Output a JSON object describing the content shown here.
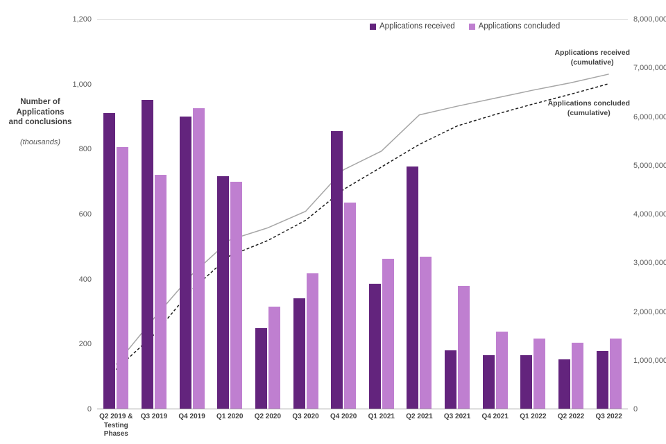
{
  "chart_data": {
    "type": "bar",
    "title": "",
    "y_axis_title": "Number of\nApplications\nand conclusions",
    "y_axis_title_note": "(thousands)",
    "categories": [
      "Q2 2019 &\nTesting\nPhases",
      "Q3 2019",
      "Q4 2019",
      "Q1 2020",
      "Q2 2020",
      "Q3 2020",
      "Q4 2020",
      "Q1 2021",
      "Q2 2021",
      "Q3 2021",
      "Q4 2021",
      "Q1 2022",
      "Q2 2022",
      "Q3 2022"
    ],
    "left_axis": {
      "max": 1200,
      "ticks": [
        "1,200",
        "1,000",
        "800",
        "600",
        "400",
        "200",
        "0"
      ]
    },
    "right_axis": {
      "max": 8000000,
      "ticks": [
        "8,000,000",
        "7,000,000",
        "6,000,000",
        "5,000,000",
        "4,000,000",
        "3,000,000",
        "2,000,000",
        "1,000,000",
        "0"
      ]
    },
    "series": [
      {
        "name": "Applications received",
        "type": "bar",
        "axis": "left",
        "color": "#63247d",
        "values": [
          910,
          950,
          900,
          715,
          248,
          340,
          855,
          385,
          745,
          180,
          165,
          165,
          152,
          178
        ]
      },
      {
        "name": "Applications concluded",
        "type": "bar",
        "axis": "left",
        "color": "#bf7fd0",
        "values": [
          805,
          720,
          925,
          698,
          313,
          417,
          635,
          462,
          467,
          378,
          237,
          215,
          203,
          215
        ]
      },
      {
        "name": "Applications received (cumulative)",
        "type": "line",
        "axis": "right",
        "color": "#a6a6a6",
        "dash": false,
        "values": [
          910000,
          1860000,
          2760000,
          3475000,
          3723000,
          4063000,
          4918000,
          5303000,
          6048000,
          6228000,
          6393000,
          6558000,
          6710000,
          6888000
        ]
      },
      {
        "name": "Applications concluded (cumulative)",
        "type": "line",
        "axis": "right",
        "color": "#1a1a1a",
        "dash": true,
        "values": [
          805000,
          1525000,
          2450000,
          3148000,
          3461000,
          3878000,
          4513000,
          4975000,
          5442000,
          5820000,
          6057000,
          6272000,
          6475000,
          6690000
        ]
      }
    ],
    "annotations": [
      {
        "line1": "Applications received",
        "line2": "(cumulative)"
      },
      {
        "line1": "Applications concluded",
        "line2": "(cumulative)"
      }
    ],
    "layout": {
      "grid": "top-and-baseline-only",
      "legend_position": "top-center-right"
    }
  }
}
